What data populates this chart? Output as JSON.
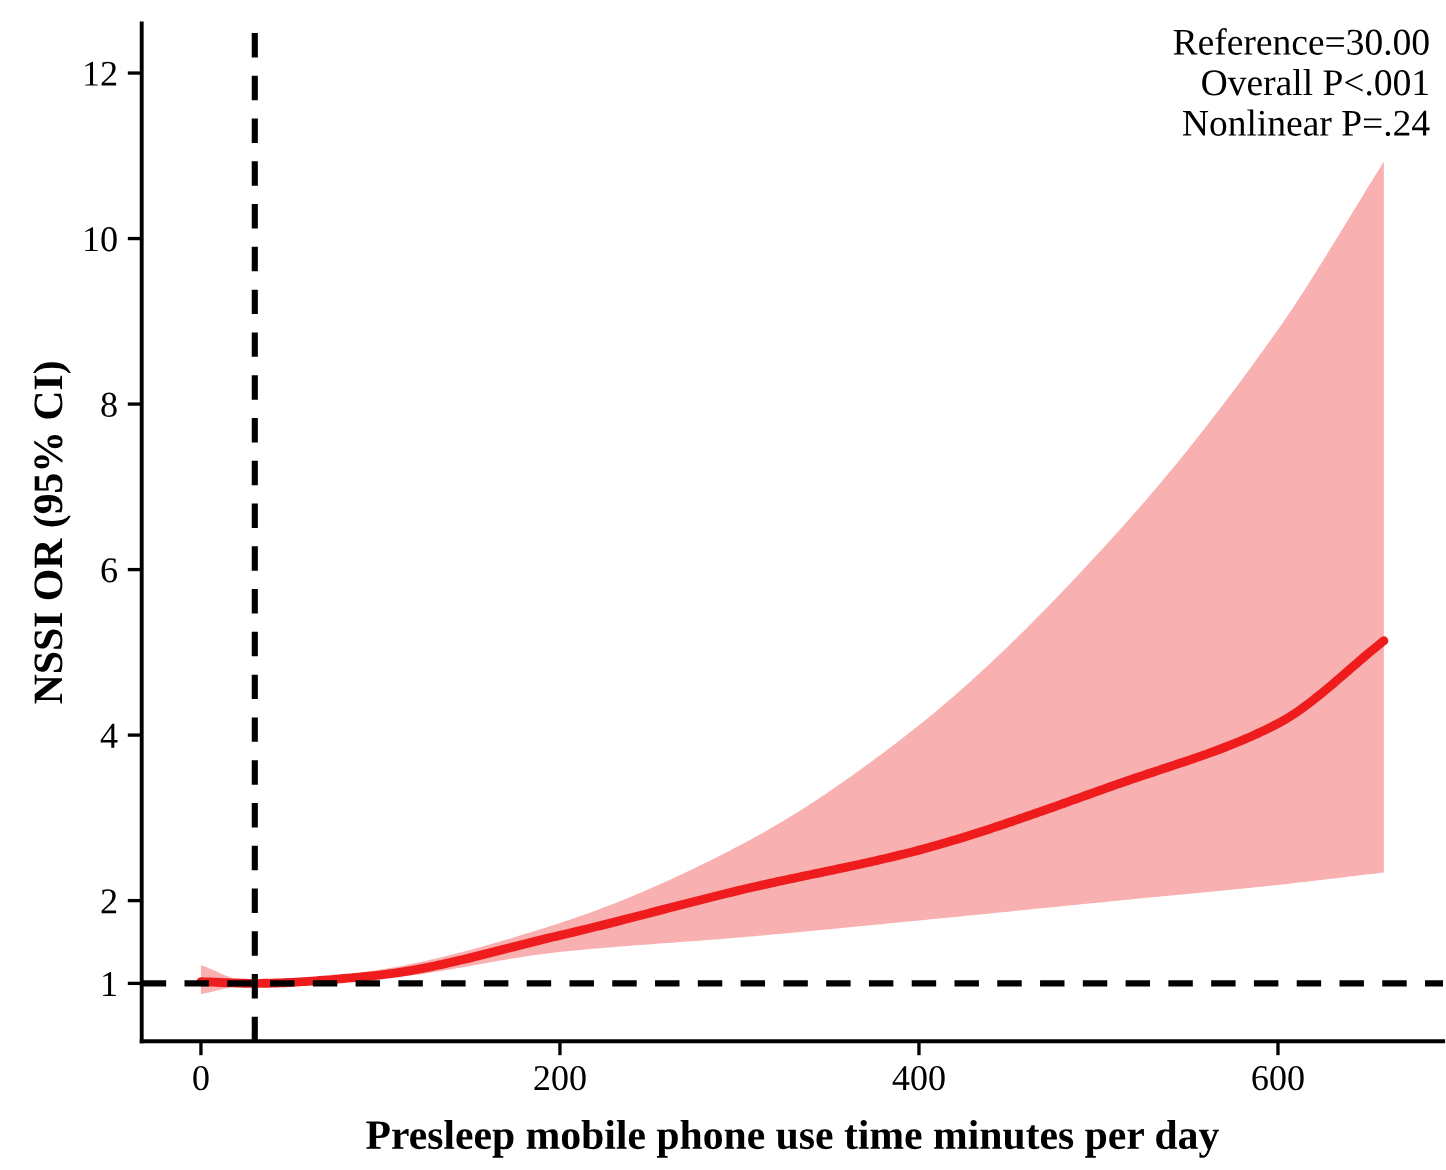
{
  "chart_data": {
    "type": "line",
    "xlabel": "Presleep mobile phone use time minutes per day",
    "ylabel": "NSSI OR (95% CI)",
    "annotations": [
      "Reference=30.00",
      "Overall P<.001",
      "Nonlinear P=.24"
    ],
    "series": [
      {
        "color": "#ee1c1c",
        "x": [
          0,
          30,
          95,
          200,
          303,
          400,
          511,
          600,
          659
        ],
        "values": [
          1.02,
          1.0,
          1.09,
          1.58,
          2.14,
          2.61,
          3.41,
          4.14,
          5.14
        ],
        "lower": [
          0.87,
          1.0,
          1.05,
          1.38,
          1.56,
          1.76,
          2.0,
          2.19,
          2.34
        ],
        "upper": [
          1.22,
          1.0,
          1.15,
          1.73,
          2.7,
          4.12,
          6.46,
          8.9,
          10.93
        ]
      }
    ],
    "xlim": [
      -33,
      692
    ],
    "ylim": [
      0.3,
      12.6
    ],
    "xticks": [
      0,
      200,
      400,
      600
    ],
    "yticks": [
      1,
      2,
      4,
      6,
      8,
      10,
      12
    ],
    "ref_lines": [
      {
        "axis": "x",
        "value": 30,
        "color": "#000000",
        "line_style": "dashed"
      },
      {
        "axis": "y",
        "value": 1,
        "color": "#000000",
        "line_style": "dashed"
      }
    ],
    "grid": false,
    "legend": false,
    "line_style": "solid",
    "marker": "none"
  }
}
